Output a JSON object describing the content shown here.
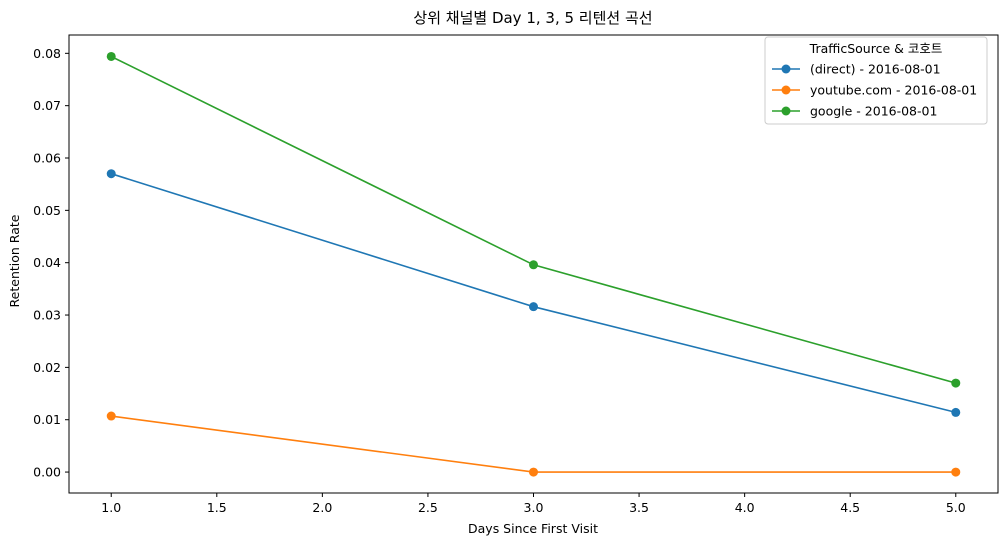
{
  "chart_data": {
    "type": "line",
    "title": "상위 채널별 Day 1, 3, 5 리텐션 곡선",
    "xlabel": "Days Since First Visit",
    "ylabel": "Retention Rate",
    "xlim": [
      0.8,
      5.2
    ],
    "ylim": [
      -0.004,
      0.0835
    ],
    "xticks": [
      1.0,
      1.5,
      2.0,
      2.5,
      3.0,
      3.5,
      4.0,
      4.5,
      5.0
    ],
    "xtick_labels": [
      "1.0",
      "1.5",
      "2.0",
      "2.5",
      "3.0",
      "3.5",
      "4.0",
      "4.5",
      "5.0"
    ],
    "yticks": [
      0.0,
      0.01,
      0.02,
      0.03,
      0.04,
      0.05,
      0.06,
      0.07,
      0.08
    ],
    "ytick_labels": [
      "0.00",
      "0.01",
      "0.02",
      "0.03",
      "0.04",
      "0.05",
      "0.06",
      "0.07",
      "0.08"
    ],
    "grid": false,
    "legend_title": "TrafficSource & 코호트",
    "legend_position": "top-right",
    "x": [
      1,
      3,
      5
    ],
    "series": [
      {
        "name": "(direct) - 2016-08-01",
        "color": "#1f77b4",
        "values": [
          0.057,
          0.0316,
          0.0114
        ]
      },
      {
        "name": "youtube.com - 2016-08-01",
        "color": "#ff7f0e",
        "values": [
          0.0107,
          0.0,
          0.0
        ]
      },
      {
        "name": "google - 2016-08-01",
        "color": "#2ca02c",
        "values": [
          0.0794,
          0.0396,
          0.017
        ]
      }
    ]
  }
}
